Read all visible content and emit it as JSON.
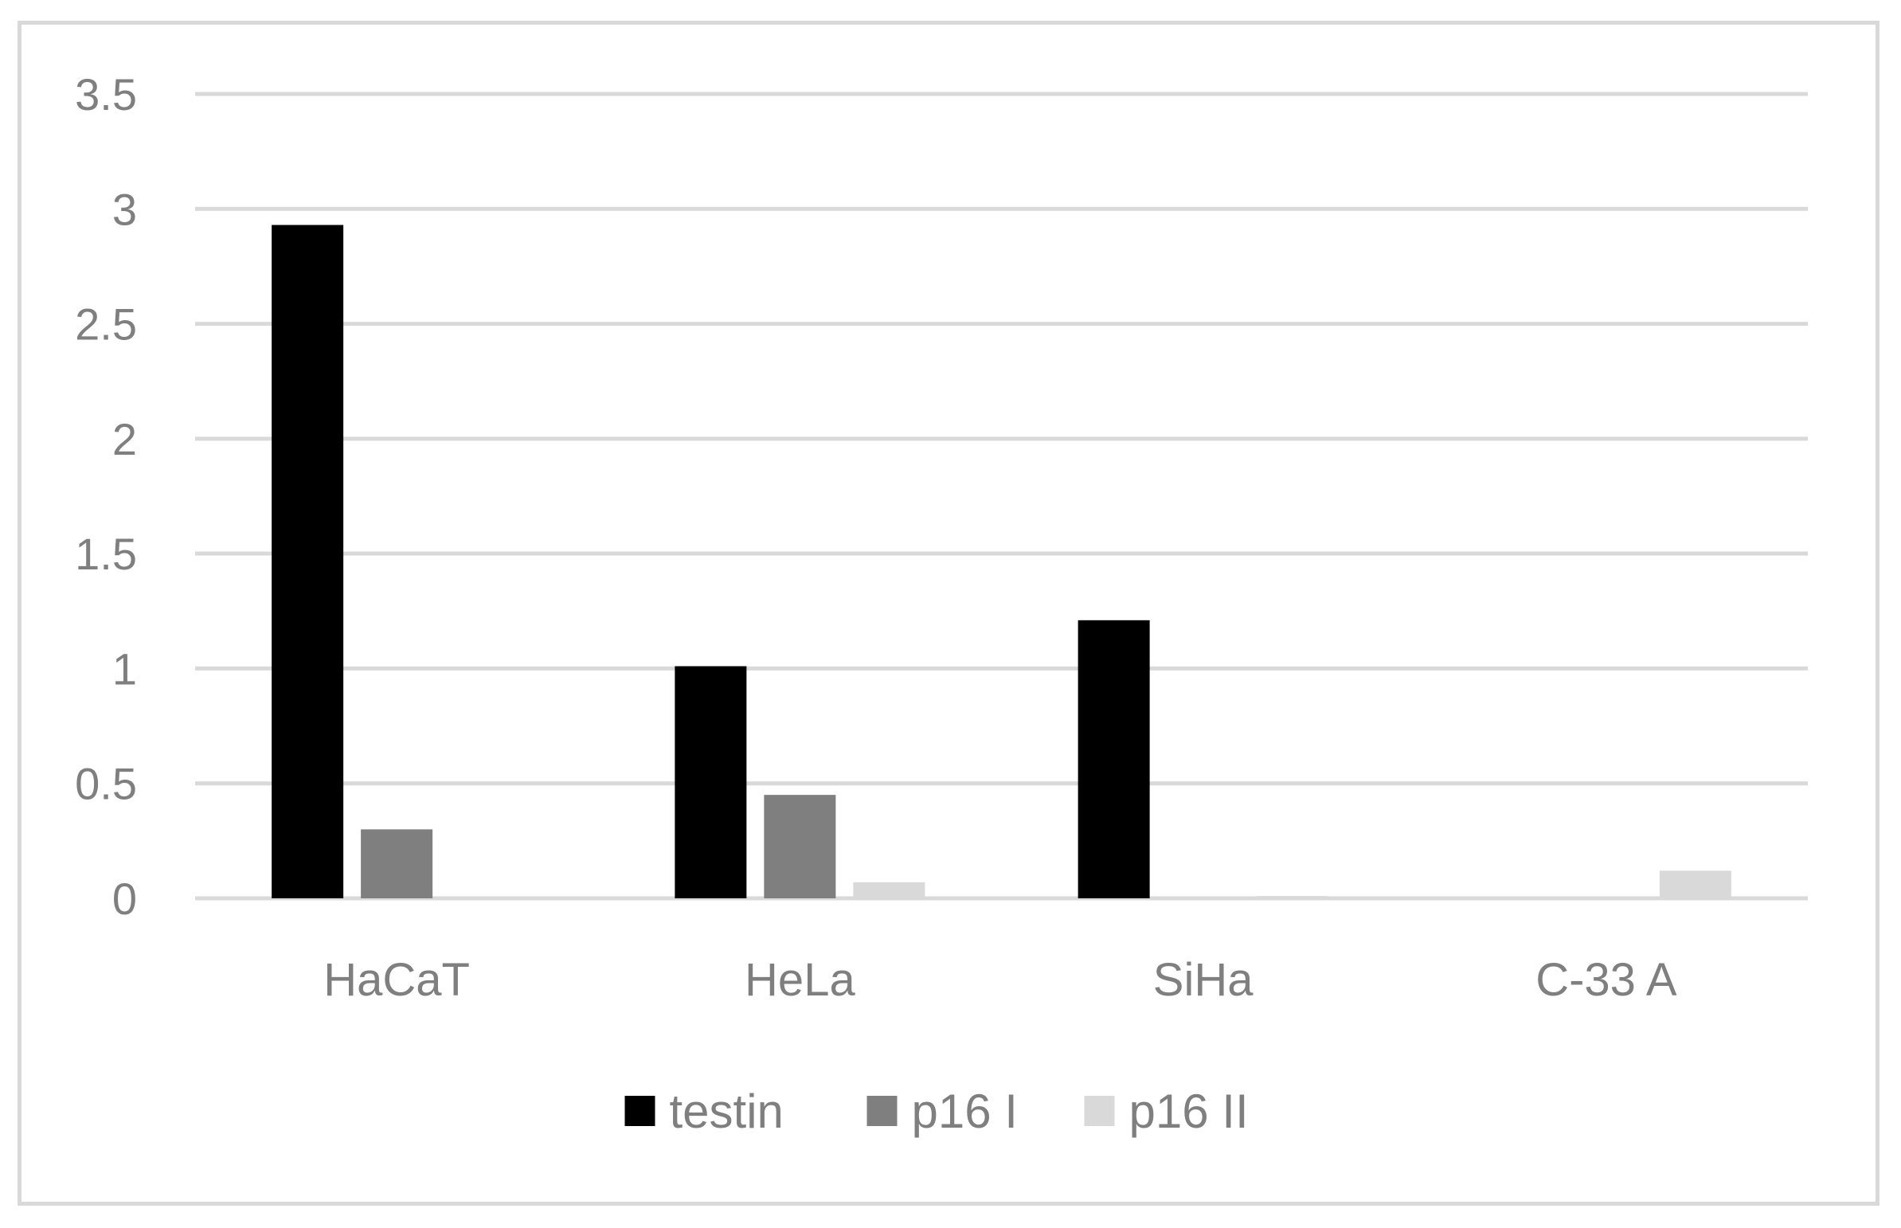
{
  "chart_data": {
    "type": "bar",
    "title": "",
    "xlabel": "",
    "ylabel": "",
    "categories": [
      "HaCaT",
      "HeLa",
      "SiHa",
      "C-33 A"
    ],
    "series": [
      {
        "name": "testin",
        "color": "#000000",
        "values": [
          2.93,
          1.01,
          1.21,
          0
        ]
      },
      {
        "name": "p16 I",
        "color": "#7f7f7f",
        "values": [
          0.3,
          0.45,
          0,
          0
        ]
      },
      {
        "name": "p16 II",
        "color": "#d9d9d9",
        "values": [
          0,
          0.07,
          0.01,
          0.12
        ]
      }
    ],
    "ylim": [
      0,
      3.5
    ],
    "yticks": [
      "0",
      "0.5",
      "1",
      "1.5",
      "2",
      "2.5",
      "3",
      "3.5"
    ],
    "grid": true,
    "legend_position": "bottom"
  }
}
